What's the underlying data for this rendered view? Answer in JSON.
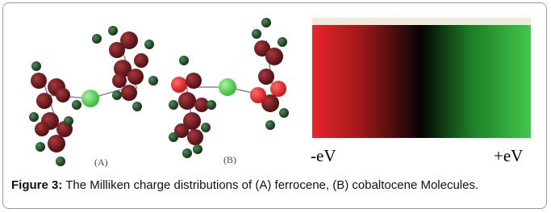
{
  "figure": {
    "panels": [
      {
        "label": "(A)"
      },
      {
        "label": "(B)"
      }
    ],
    "scale": {
      "min_label": "-eV",
      "max_label": "+eV"
    },
    "caption": {
      "label": "Figure 3:",
      "text": "The Milliken charge distributions of (A) ferrocene, (B) cobaltocene Molecules."
    }
  }
}
